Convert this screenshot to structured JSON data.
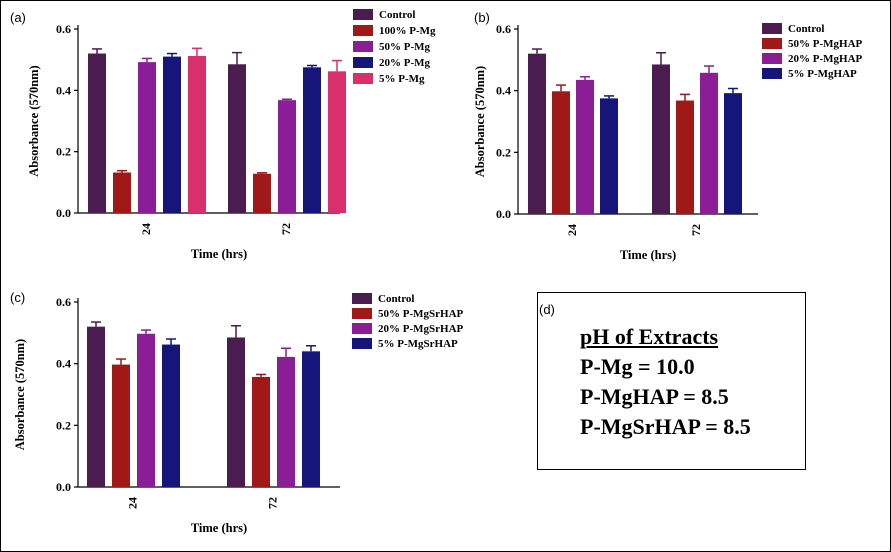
{
  "figure": {
    "panel_d": {
      "label": "(d)",
      "title": "pH of Extracts",
      "lines": [
        "P-Mg = 10.0",
        "P-MgHAP = 8.5",
        "P-MgSrHAP = 8.5"
      ]
    }
  },
  "colors": {
    "control": "#4a1c4f",
    "red": "#a01818",
    "purple": "#8b1e96",
    "blue": "#15157a",
    "pink": "#d8306a"
  },
  "chart_data": [
    {
      "id": "a",
      "label": "(a)",
      "type": "bar",
      "title": "",
      "xlabel": "Time (hrs)",
      "ylabel": "Absorbance (570nm)",
      "ylim": [
        0,
        0.6
      ],
      "yticks": [
        "0.0",
        "0.2",
        "0.4",
        "0.6"
      ],
      "categories": [
        "24",
        "72"
      ],
      "series": [
        {
          "name": "Control",
          "color": "#4a1c4f",
          "values": [
            0.52,
            0.485
          ],
          "errors": [
            0.015,
            0.038
          ]
        },
        {
          "name": "100% P-Mg",
          "color": "#a01818",
          "values": [
            0.132,
            0.128
          ],
          "errors": [
            0.006,
            0.003
          ]
        },
        {
          "name": "50% P-Mg",
          "color": "#8b1e96",
          "values": [
            0.492,
            0.368
          ],
          "errors": [
            0.012,
            0.003
          ]
        },
        {
          "name": "20% P-Mg",
          "color": "#15157a",
          "values": [
            0.51,
            0.475
          ],
          "errors": [
            0.01,
            0.006
          ]
        },
        {
          "name": "5% P-Mg",
          "color": "#d8306a",
          "values": [
            0.512,
            0.462
          ],
          "errors": [
            0.025,
            0.035
          ]
        }
      ]
    },
    {
      "id": "b",
      "label": "(b)",
      "type": "bar",
      "title": "",
      "xlabel": "Time (hrs)",
      "ylabel": "Absorbance (570nm)",
      "ylim": [
        0,
        0.6
      ],
      "yticks": [
        "0.0",
        "0.2",
        "0.4",
        "0.6"
      ],
      "categories": [
        "24",
        "72"
      ],
      "series": [
        {
          "name": "Control",
          "color": "#4a1c4f",
          "values": [
            0.52,
            0.485
          ],
          "errors": [
            0.015,
            0.038
          ]
        },
        {
          "name": "50% P-MgHAP",
          "color": "#a01818",
          "values": [
            0.398,
            0.368
          ],
          "errors": [
            0.02,
            0.02
          ]
        },
        {
          "name": "20% P-MgHAP",
          "color": "#8b1e96",
          "values": [
            0.435,
            0.458
          ],
          "errors": [
            0.01,
            0.022
          ]
        },
        {
          "name": "5% P-MgHAP",
          "color": "#15157a",
          "values": [
            0.375,
            0.392
          ],
          "errors": [
            0.008,
            0.015
          ]
        }
      ]
    },
    {
      "id": "c",
      "label": "(c)",
      "type": "bar",
      "title": "",
      "xlabel": "Time (hrs)",
      "ylabel": "Absorbance (570nm)",
      "ylim": [
        0,
        0.6
      ],
      "yticks": [
        "0.0",
        "0.2",
        "0.4",
        "0.6"
      ],
      "categories": [
        "24",
        "72"
      ],
      "series": [
        {
          "name": "Control",
          "color": "#4a1c4f",
          "values": [
            0.52,
            0.485
          ],
          "errors": [
            0.015,
            0.038
          ]
        },
        {
          "name": "50% P-MgSrHAP",
          "color": "#a01818",
          "values": [
            0.397,
            0.357
          ],
          "errors": [
            0.018,
            0.008
          ]
        },
        {
          "name": "20% P-MgSrHAP",
          "color": "#8b1e96",
          "values": [
            0.497,
            0.422
          ],
          "errors": [
            0.012,
            0.028
          ]
        },
        {
          "name": "5% P-MgSrHAP",
          "color": "#15157a",
          "values": [
            0.462,
            0.44
          ],
          "errors": [
            0.018,
            0.018
          ]
        }
      ]
    }
  ]
}
